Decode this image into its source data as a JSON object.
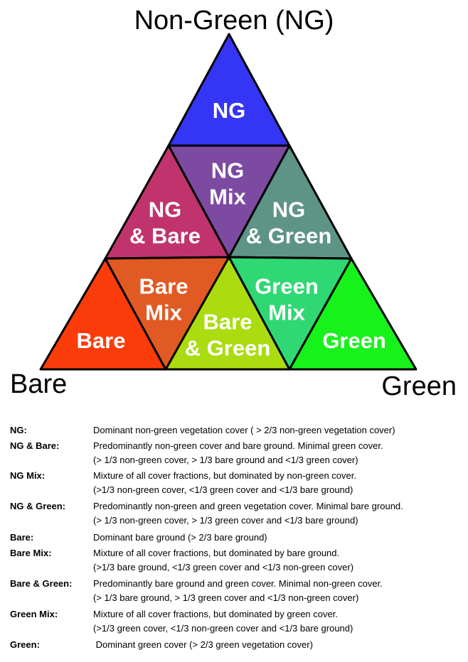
{
  "corners": {
    "top": "Non-Green (NG)",
    "left": "Bare",
    "right": "Green"
  },
  "regions": [
    {
      "id": "ng",
      "lines": [
        "NG"
      ],
      "color": "#3535f5"
    },
    {
      "id": "ng-mix",
      "lines": [
        "NG",
        "Mix"
      ],
      "color": "#7d4aa1"
    },
    {
      "id": "ng-bare",
      "lines": [
        "NG",
        "& Bare"
      ],
      "color": "#c1336c"
    },
    {
      "id": "ng-green",
      "lines": [
        "NG",
        "& Green"
      ],
      "color": "#5e9486"
    },
    {
      "id": "bare",
      "lines": [
        "Bare"
      ],
      "color": "#fb3c0a"
    },
    {
      "id": "bare-mix",
      "lines": [
        "Bare",
        "Mix"
      ],
      "color": "#e15a24"
    },
    {
      "id": "bare-green",
      "lines": [
        "Bare",
        "& Green"
      ],
      "color": "#aadc10"
    },
    {
      "id": "green-mix",
      "lines": [
        "Green",
        "Mix"
      ],
      "color": "#2fd873"
    },
    {
      "id": "green",
      "lines": [
        "Green"
      ],
      "color": "#17f21b"
    }
  ],
  "legend": [
    {
      "term": "NG:",
      "line1": "Dominant non-green vegetation cover ( > 2/3 non-green vegetation cover)",
      "line2": ""
    },
    {
      "term": "NG & Bare:",
      "line1": "Predominantly non-green cover and bare ground. Minimal green cover.",
      "line2": "(> 1/3 non-green cover, > 1/3 bare ground and <1/3 green cover)"
    },
    {
      "term": "NG Mix:",
      "line1": "Mixture of all cover fractions, but dominated by non-green cover.",
      "line2": "(>1/3 non-green cover, <1/3 green cover and <1/3 bare ground)"
    },
    {
      "term": "NG & Green:",
      "line1": "Predominantly non-green and green vegetation cover. Minimal bare ground.",
      "line2": "(> 1/3 non-green cover, > 1/3 green cover and <1/3 bare ground)"
    },
    {
      "term": "Bare:",
      "line1": "Dominant bare ground (> 2/3 bare ground)",
      "line2": ""
    },
    {
      "term": "Bare Mix:",
      "line1": "Mixture of all cover fractions, but dominated by bare ground.",
      "line2": "(>1/3 bare ground, <1/3 green cover and <1/3 non-green cover)"
    },
    {
      "term": "Bare & Green:",
      "line1": "Predominantly bare ground and green cover. Minimal non-green cover.",
      "line2": "(> 1/3 bare ground, > 1/3 green cover and <1/3 non-green cover)"
    },
    {
      "term": "Green Mix:",
      "line1": "Mixture of all cover fractions, but dominated by green cover.",
      "line2": "(>1/3 green cover, <1/3 non-green cover and <1/3 bare ground)"
    },
    {
      "term": "Green:",
      "line1": " Dominant green cover (> 2/3 green vegetation cover)",
      "line2": ""
    }
  ]
}
